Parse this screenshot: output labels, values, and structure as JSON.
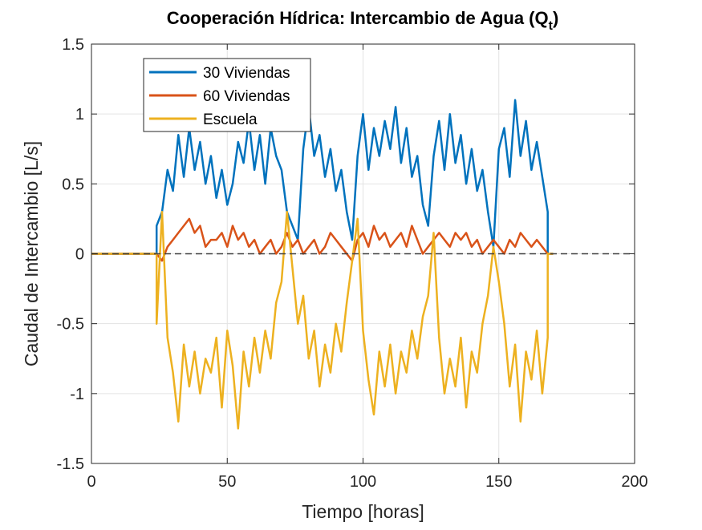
{
  "chart_data": {
    "type": "line",
    "title": {
      "prefix": "Cooperación Hídrica: Intercambio de Agua (Q",
      "subscript": "t",
      "suffix": ")"
    },
    "xlabel": "Tiempo [horas]",
    "ylabel": "Caudal de Intercambio [L/s]",
    "xlim": [
      0,
      200
    ],
    "ylim": [
      -1.5,
      1.5
    ],
    "xticks": [
      0,
      50,
      100,
      150,
      200
    ],
    "yticks": [
      -1.5,
      -1,
      -0.5,
      0,
      0.5,
      1,
      1.5
    ],
    "xtick_labels": [
      "0",
      "50",
      "100",
      "150",
      "200"
    ],
    "ytick_labels": [
      "-1.5",
      "-1",
      "-0.5",
      "0",
      "0.5",
      "1",
      "1.5"
    ],
    "grid": true,
    "legend_position": "top-left",
    "reference_line": {
      "y": 0,
      "style": "dashed",
      "color": "#404040"
    },
    "series": [
      {
        "name": "30 Viviendas",
        "color": "#0072BD",
        "x": [
          0,
          24,
          24,
          26,
          28,
          30,
          32,
          34,
          36,
          38,
          40,
          42,
          44,
          46,
          48,
          50,
          52,
          54,
          56,
          58,
          60,
          62,
          64,
          66,
          68,
          70,
          72,
          74,
          76,
          78,
          80,
          82,
          84,
          86,
          88,
          90,
          92,
          94,
          96,
          98,
          100,
          102,
          104,
          106,
          108,
          110,
          112,
          114,
          116,
          118,
          120,
          122,
          124,
          126,
          128,
          130,
          132,
          134,
          136,
          138,
          140,
          142,
          144,
          146,
          148,
          150,
          152,
          154,
          156,
          158,
          160,
          162,
          164,
          166,
          168,
          168,
          170
        ],
        "y": [
          0,
          0,
          0.2,
          0.3,
          0.6,
          0.45,
          0.85,
          0.55,
          0.9,
          0.6,
          0.8,
          0.5,
          0.7,
          0.4,
          0.6,
          0.35,
          0.5,
          0.8,
          0.65,
          0.95,
          0.6,
          0.85,
          0.5,
          0.9,
          0.7,
          0.6,
          0.3,
          0.2,
          0.1,
          0.75,
          1.05,
          0.7,
          0.85,
          0.55,
          0.75,
          0.45,
          0.6,
          0.3,
          0.1,
          0.7,
          1.0,
          0.6,
          0.9,
          0.7,
          0.95,
          0.75,
          1.05,
          0.65,
          0.9,
          0.55,
          0.7,
          0.35,
          0.2,
          0.7,
          0.95,
          0.6,
          1.0,
          0.65,
          0.85,
          0.5,
          0.75,
          0.45,
          0.6,
          0.3,
          0.05,
          0.75,
          0.9,
          0.55,
          1.1,
          0.7,
          0.95,
          0.6,
          0.8,
          0.55,
          0.3,
          0,
          0
        ]
      },
      {
        "name": "60 Viviendas",
        "color": "#D95319",
        "x": [
          0,
          24,
          26,
          28,
          30,
          32,
          34,
          36,
          38,
          40,
          42,
          44,
          46,
          48,
          50,
          52,
          54,
          56,
          58,
          60,
          62,
          64,
          66,
          68,
          70,
          72,
          74,
          76,
          78,
          80,
          82,
          84,
          86,
          88,
          90,
          92,
          94,
          96,
          98,
          100,
          102,
          104,
          106,
          108,
          110,
          112,
          114,
          116,
          118,
          120,
          122,
          124,
          126,
          128,
          130,
          132,
          134,
          136,
          138,
          140,
          142,
          144,
          146,
          148,
          150,
          152,
          154,
          156,
          158,
          160,
          162,
          164,
          166,
          168,
          170
        ],
        "y": [
          0,
          0,
          -0.05,
          0.05,
          0.1,
          0.15,
          0.2,
          0.25,
          0.15,
          0.2,
          0.05,
          0.1,
          0.1,
          0.15,
          0.05,
          0.2,
          0.1,
          0.15,
          0.05,
          0.1,
          0.0,
          0.05,
          0.1,
          0.0,
          0.05,
          0.15,
          0.05,
          0.1,
          0.0,
          0.05,
          0.1,
          0.0,
          0.05,
          0.15,
          0.1,
          0.05,
          0.0,
          -0.05,
          0.1,
          0.15,
          0.05,
          0.2,
          0.1,
          0.15,
          0.05,
          0.1,
          0.15,
          0.05,
          0.2,
          0.1,
          0.0,
          0.05,
          0.1,
          0.15,
          0.1,
          0.05,
          0.15,
          0.1,
          0.15,
          0.05,
          0.1,
          0.0,
          0.05,
          0.1,
          0.05,
          0.0,
          0.1,
          0.05,
          0.15,
          0.1,
          0.05,
          0.1,
          0.05,
          0.0,
          0
        ]
      },
      {
        "name": "Escuela",
        "color": "#EDB120",
        "x": [
          0,
          24,
          24,
          26,
          28,
          30,
          32,
          34,
          36,
          38,
          40,
          42,
          44,
          46,
          48,
          50,
          52,
          54,
          56,
          58,
          60,
          62,
          64,
          66,
          68,
          70,
          72,
          74,
          76,
          78,
          80,
          82,
          84,
          86,
          88,
          90,
          92,
          94,
          96,
          98,
          100,
          102,
          104,
          106,
          108,
          110,
          112,
          114,
          116,
          118,
          120,
          122,
          124,
          126,
          128,
          130,
          132,
          134,
          136,
          138,
          140,
          142,
          144,
          146,
          148,
          150,
          152,
          154,
          156,
          158,
          160,
          162,
          164,
          166,
          168,
          168,
          170
        ],
        "y": [
          0,
          0,
          -0.5,
          0.3,
          -0.6,
          -0.85,
          -1.2,
          -0.65,
          -0.95,
          -0.7,
          -1.0,
          -0.75,
          -0.85,
          -0.6,
          -1.1,
          -0.55,
          -0.8,
          -1.25,
          -0.7,
          -0.95,
          -0.6,
          -0.85,
          -0.55,
          -0.75,
          -0.35,
          -0.2,
          0.3,
          -0.1,
          -0.5,
          -0.3,
          -0.75,
          -0.55,
          -0.95,
          -0.65,
          -0.85,
          -0.5,
          -0.7,
          -0.35,
          -0.05,
          0.25,
          -0.55,
          -0.9,
          -1.15,
          -0.7,
          -0.95,
          -0.65,
          -1.0,
          -0.7,
          -0.85,
          -0.55,
          -0.75,
          -0.45,
          -0.3,
          0.15,
          -0.6,
          -1.0,
          -0.75,
          -0.95,
          -0.6,
          -1.1,
          -0.7,
          -0.85,
          -0.5,
          -0.3,
          0.05,
          -0.2,
          -0.5,
          -0.95,
          -0.65,
          -1.2,
          -0.7,
          -0.9,
          -0.55,
          -1.0,
          -0.6,
          0,
          0
        ]
      }
    ]
  }
}
